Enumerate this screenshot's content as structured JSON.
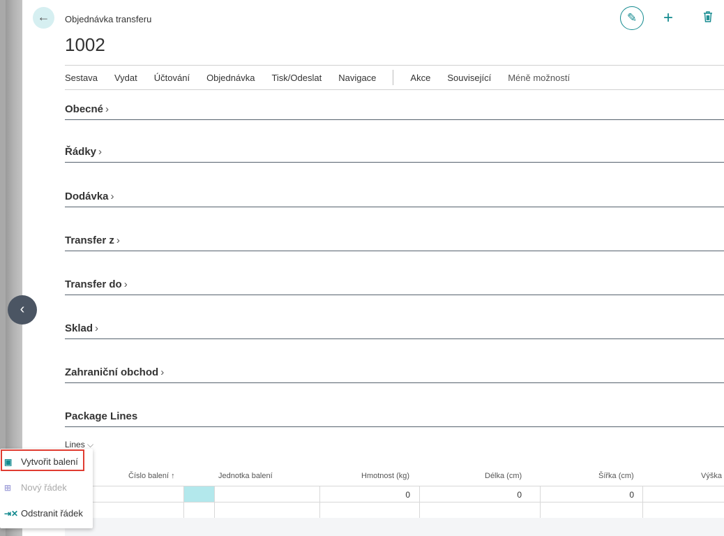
{
  "header": {
    "caption": "Objednávka transferu",
    "title": "1002",
    "back_icon": "arrow-left-icon",
    "actions": [
      "edit-icon",
      "plus-icon",
      "trash-icon"
    ]
  },
  "menu": {
    "items": [
      "Sestava",
      "Vydat",
      "Účtování",
      "Objednávka",
      "Tisk/Odeslat",
      "Navigace"
    ],
    "items2": [
      "Akce",
      "Související"
    ],
    "less": "Méně možností"
  },
  "sections": [
    "Obecné",
    "Řádky",
    "Dodávka",
    "Transfer z",
    "Transfer do",
    "Sklad",
    "Zahraniční obchod"
  ],
  "package": {
    "title": "Package Lines",
    "lines_label": "Lines",
    "columns": [
      "Číslo balení",
      "Jednotka balení",
      "Hmotnost (kg)",
      "Délka (cm)",
      "Šířka (cm)",
      "Výška (cm)"
    ],
    "sort_indicator": "↑",
    "rows": [
      {
        "hmotnost": "0",
        "delka": "0",
        "sirka": "0"
      }
    ]
  },
  "popup": {
    "items": [
      {
        "label": "Vytvořit balení",
        "icon": "create-package-icon"
      },
      {
        "label": "Nový řádek",
        "icon": "new-line-icon",
        "disabled": true
      },
      {
        "label": "Odstranit řádek",
        "icon": "delete-line-icon"
      }
    ]
  },
  "colors": {
    "accent": "#138a8f",
    "highlight": "#e03c31",
    "selected_cell": "#b3e8ec"
  }
}
